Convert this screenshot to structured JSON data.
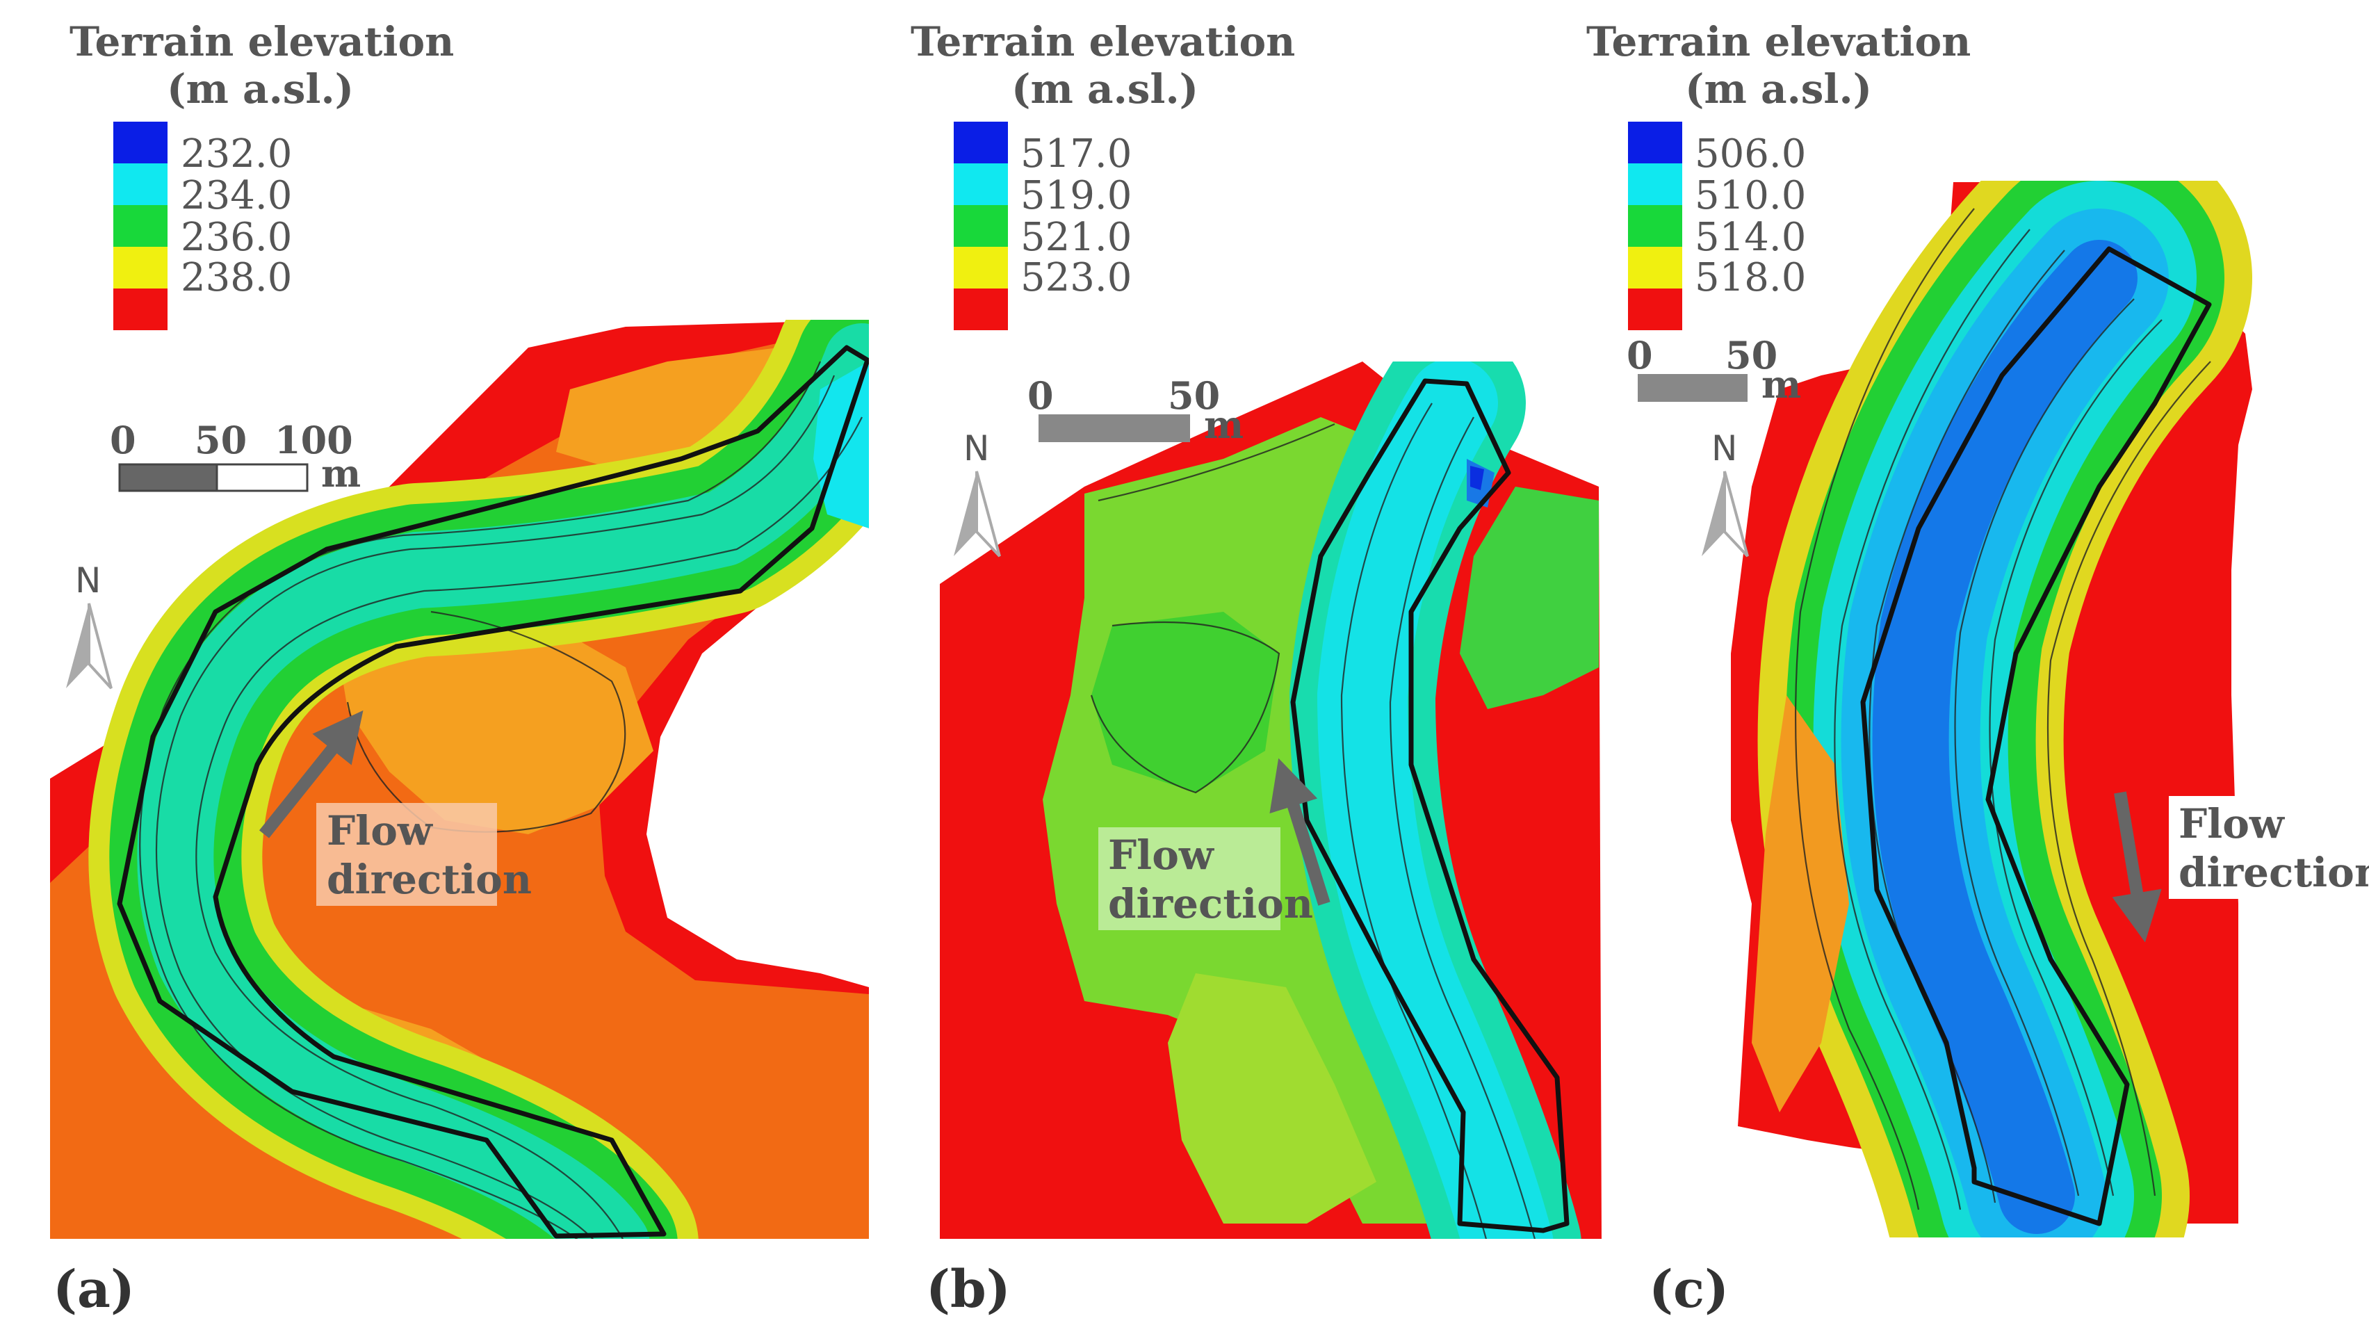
{
  "panels": [
    {
      "id": "a",
      "label": "(a)",
      "legend": {
        "title_line1": "Terrain elevation",
        "title_line2": "(m a.sl.)",
        "entries": [
          {
            "value": "232.0",
            "color": "#0a1ee6"
          },
          {
            "value": "234.0",
            "color": "#10e8f0"
          },
          {
            "value": "236.0",
            "color": "#18d83a"
          },
          {
            "value": "238.0",
            "color": "#f0f010"
          },
          {
            "value": "",
            "color": "#f01010"
          }
        ]
      },
      "scale_bar": {
        "ticks": [
          "0",
          "50",
          "100"
        ],
        "unit": "m"
      },
      "north": "N",
      "flow_label": {
        "line1": "Flow",
        "line2": "direction"
      }
    },
    {
      "id": "b",
      "label": "(b)",
      "legend": {
        "title_line1": "Terrain elevation",
        "title_line2": "(m a.sl.)",
        "entries": [
          {
            "value": "517.0",
            "color": "#0a1ee6"
          },
          {
            "value": "519.0",
            "color": "#10e8f0"
          },
          {
            "value": "521.0",
            "color": "#18d83a"
          },
          {
            "value": "523.0",
            "color": "#f0f010"
          },
          {
            "value": "",
            "color": "#f01010"
          }
        ]
      },
      "scale_bar": {
        "ticks": [
          "0",
          "50"
        ],
        "unit": "m"
      },
      "north": "N",
      "flow_label": {
        "line1": "Flow",
        "line2": "direction"
      }
    },
    {
      "id": "c",
      "label": "(c)",
      "legend": {
        "title_line1": "Terrain elevation",
        "title_line2": "(m a.sl.)",
        "entries": [
          {
            "value": "506.0",
            "color": "#0a1ee6"
          },
          {
            "value": "510.0",
            "color": "#10e8f0"
          },
          {
            "value": "514.0",
            "color": "#18d83a"
          },
          {
            "value": "518.0",
            "color": "#f0f010"
          },
          {
            "value": "",
            "color": "#f01010"
          }
        ]
      },
      "scale_bar": {
        "ticks": [
          "0",
          "50"
        ],
        "unit": "m"
      },
      "north": "N",
      "flow_label": {
        "line1": "Flow",
        "line2": "direction"
      }
    }
  ]
}
